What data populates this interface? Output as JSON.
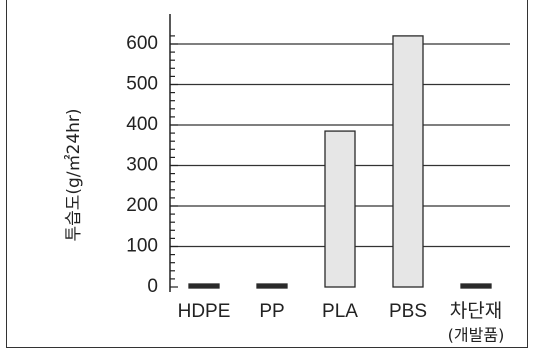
{
  "chart_data": {
    "type": "bar",
    "ylabel": "투습도(g/㎡24hr)",
    "xlabel": "",
    "title": "",
    "categories": [
      "HDPE",
      "PP",
      "PLA",
      "PBS",
      "차단재"
    ],
    "category_sublabels": [
      "",
      "",
      "",
      "",
      "(개발품)"
    ],
    "values": [
      3,
      3,
      385,
      650,
      4
    ],
    "ylim": [
      -30,
      620
    ],
    "yticks": [
      0,
      100,
      200,
      300,
      400,
      500,
      600
    ],
    "grid": true,
    "colors": {
      "bar_fill": "#e6e6e6",
      "bar_stroke": "#2a2a2a",
      "small_bar_fill": "#2a2a2a",
      "grid": "#333333"
    }
  }
}
